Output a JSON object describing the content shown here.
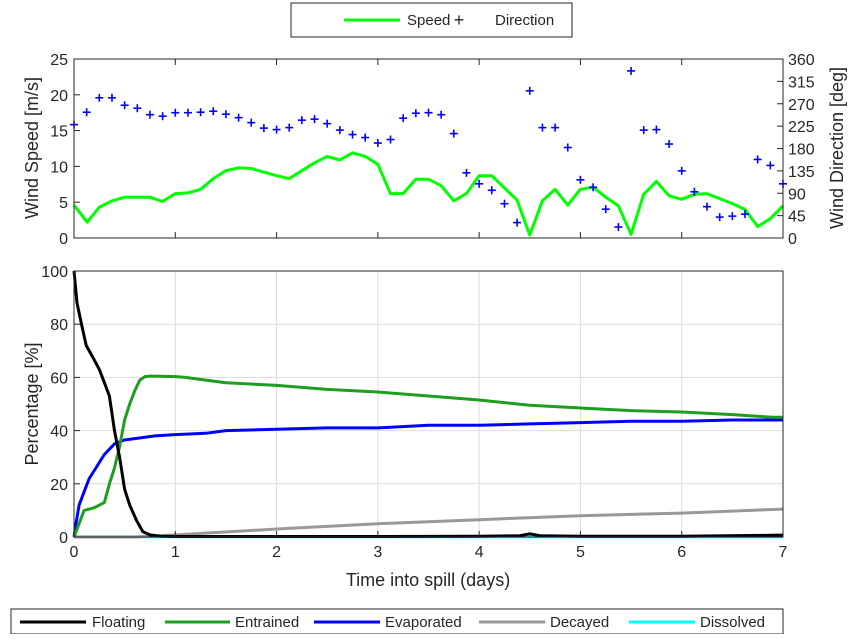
{
  "chart_data": [
    {
      "type": "line",
      "ylabel": "Wind Speed [m/s]",
      "ylabel_right": "Wind Direction [deg]",
      "xlim": [
        0,
        7
      ],
      "ylim": [
        0,
        25
      ],
      "ylim_right": [
        0,
        360
      ],
      "x_ticks": [
        0,
        1,
        2,
        3,
        4,
        5,
        6,
        7
      ],
      "y_ticks": [
        0,
        5,
        10,
        15,
        20,
        25
      ],
      "y_ticks_right": [
        0,
        45,
        90,
        135,
        180,
        225,
        270,
        315,
        360
      ],
      "grid": false,
      "legend_position": "top-center",
      "series": [
        {
          "name": "Speed",
          "axis": "left",
          "style": "line",
          "color": "#00ff00",
          "x": [
            0,
            0.13,
            0.25,
            0.375,
            0.5,
            0.75,
            0.875,
            1,
            1.125,
            1.25,
            1.375,
            1.5,
            1.625,
            1.75,
            2,
            2.125,
            2.25,
            2.375,
            2.5,
            2.625,
            2.75,
            2.875,
            3,
            3.125,
            3.25,
            3.375,
            3.5,
            3.625,
            3.75,
            3.875,
            4,
            4.125,
            4.25,
            4.375,
            4.5,
            4.625,
            4.75,
            4.875,
            5,
            5.125,
            5.25,
            5.375,
            5.5,
            5.625,
            5.75,
            5.875,
            6,
            6.125,
            6.25,
            6.375,
            6.5,
            6.625,
            6.75,
            6.875,
            7
          ],
          "y": [
            4.6,
            2.2,
            4.3,
            5.2,
            5.7,
            5.7,
            5.1,
            6.2,
            6.3,
            6.8,
            8.3,
            9.4,
            9.8,
            9.7,
            8.7,
            8.3,
            9.4,
            10.5,
            11.4,
            10.9,
            11.9,
            11.4,
            10.3,
            6.2,
            6.2,
            8.2,
            8.2,
            7.3,
            5.2,
            6.2,
            8.7,
            8.7,
            7.0,
            5.3,
            0.4,
            5.2,
            6.8,
            4.6,
            6.8,
            7.1,
            5.7,
            4.5,
            0.5,
            6.1,
            7.9,
            5.9,
            5.4,
            6.1,
            6.2,
            5.5,
            4.8,
            4.0,
            1.6,
            2.7,
            4.5
          ]
        },
        {
          "name": "Direction",
          "axis": "right",
          "style": "marker",
          "marker": "+",
          "color": "#0000ff",
          "x": [
            0,
            0.125,
            0.25,
            0.375,
            0.5,
            0.625,
            0.75,
            0.875,
            1,
            1.125,
            1.25,
            1.375,
            1.5,
            1.625,
            1.75,
            1.875,
            2,
            2.125,
            2.25,
            2.375,
            2.5,
            2.625,
            2.75,
            2.875,
            3,
            3.125,
            3.25,
            3.375,
            3.5,
            3.625,
            3.75,
            3.875,
            4,
            4.125,
            4.25,
            4.375,
            4.5,
            4.625,
            4.75,
            4.875,
            5,
            5.125,
            5.25,
            5.375,
            5.5,
            5.625,
            5.75,
            5.875,
            6,
            6.125,
            6.25,
            6.375,
            6.5,
            6.625,
            6.75,
            6.875,
            7
          ],
          "y": [
            228,
            253,
            282,
            282,
            267,
            261,
            248,
            245,
            252,
            252,
            253,
            255,
            249,
            242,
            232,
            221,
            218,
            222,
            237,
            239,
            230,
            217,
            208,
            202,
            191,
            198,
            241,
            251,
            252,
            248,
            210,
            131,
            109,
            96,
            69,
            31,
            296,
            222,
            222,
            182,
            117,
            102,
            58,
            22,
            336,
            217,
            218,
            189,
            135,
            93,
            63,
            42,
            44,
            48,
            158,
            146,
            109
          ]
        }
      ]
    },
    {
      "type": "line",
      "xlabel": "Time into spill (days)",
      "ylabel": "Percentage  [%]",
      "xlim": [
        0,
        7
      ],
      "ylim": [
        0,
        100
      ],
      "x_ticks": [
        0,
        1,
        2,
        3,
        4,
        5,
        6,
        7
      ],
      "y_ticks": [
        0,
        20,
        40,
        60,
        80,
        100
      ],
      "grid": true,
      "legend_position": "bottom-center",
      "series": [
        {
          "name": "Floating",
          "color": "#000000",
          "x": [
            0,
            0.03,
            0.08,
            0.12,
            0.18,
            0.25,
            0.3,
            0.35,
            0.4,
            0.45,
            0.5,
            0.55,
            0.62,
            0.68,
            0.75,
            0.85,
            1,
            2,
            3,
            4,
            4.4,
            4.5,
            4.6,
            5,
            6,
            6.8,
            7
          ],
          "y": [
            100,
            88,
            79,
            72,
            68,
            63,
            58,
            53,
            40,
            30,
            18,
            12,
            6,
            2,
            0.8,
            0.3,
            0.2,
            0.2,
            0.2,
            0.3,
            0.5,
            1.2,
            0.5,
            0.3,
            0.3,
            0.6,
            0.7
          ]
        },
        {
          "name": "Entrained",
          "color": "#1e9e1e",
          "x": [
            0,
            0.05,
            0.1,
            0.2,
            0.3,
            0.35,
            0.4,
            0.45,
            0.5,
            0.55,
            0.6,
            0.65,
            0.7,
            0.75,
            0.8,
            1,
            1.1,
            1.3,
            1.5,
            2,
            2.5,
            3,
            3.5,
            4,
            4.5,
            5,
            5.5,
            6,
            6.5,
            6.9,
            7
          ],
          "y": [
            0,
            5,
            10,
            11,
            13,
            20,
            26,
            34,
            44,
            50,
            55,
            59,
            60.3,
            60.5,
            60.5,
            60.3,
            60,
            59,
            58,
            57,
            55.5,
            54.5,
            53,
            51.5,
            49.5,
            48.5,
            47.5,
            47,
            46,
            45,
            45
          ]
        },
        {
          "name": "Evaporated",
          "color": "#0000ff",
          "x": [
            0,
            0.02,
            0.05,
            0.1,
            0.15,
            0.2,
            0.25,
            0.3,
            0.35,
            0.4,
            0.5,
            0.6,
            0.8,
            1,
            1.3,
            1.5,
            2,
            2.5,
            3,
            3.5,
            4,
            4.5,
            5,
            5.5,
            6,
            6.5,
            7
          ],
          "y": [
            0,
            5,
            12,
            17,
            22,
            25,
            28,
            31,
            33,
            35,
            36.5,
            37,
            38,
            38.5,
            39,
            40,
            40.5,
            41,
            41,
            42,
            42,
            42.5,
            43,
            43.5,
            43.5,
            44,
            44
          ]
        },
        {
          "name": "Decayed",
          "color": "#999999",
          "x": [
            0,
            0.6,
            1,
            2,
            3,
            4,
            5,
            6,
            7
          ],
          "y": [
            0,
            0,
            0.8,
            3,
            5,
            6.5,
            8,
            9,
            10.5
          ]
        },
        {
          "name": "Dissolved",
          "color": "#00ffff",
          "x": [
            0,
            7
          ],
          "y": [
            0.1,
            0.1
          ]
        }
      ]
    }
  ]
}
